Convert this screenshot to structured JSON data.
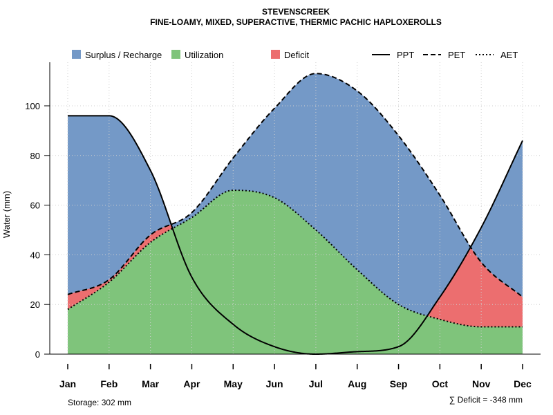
{
  "chart_data": {
    "type": "area",
    "title": "STEVENSCREEK",
    "subtitle": "FINE-LOAMY, MIXED, SUPERACTIVE, THERMIC PACHIC HAPLOXEROLLS",
    "xlabel": "",
    "ylabel": "Water (mm)",
    "categories": [
      "Jan",
      "Feb",
      "Mar",
      "Apr",
      "May",
      "Jun",
      "Jul",
      "Aug",
      "Sep",
      "Oct",
      "Nov",
      "Dec"
    ],
    "ylim": [
      0,
      117
    ],
    "yticks": [
      0,
      20,
      40,
      60,
      80,
      100
    ],
    "grid": true,
    "series": [
      {
        "name": "PPT",
        "style": "solid",
        "values": [
          96,
          96,
          74,
          31,
          12,
          3,
          0,
          1,
          3,
          23,
          51,
          86
        ]
      },
      {
        "name": "PET",
        "style": "dashed",
        "values": [
          24,
          30,
          48,
          57,
          79,
          99,
          113,
          106,
          88,
          64,
          37,
          23
        ]
      },
      {
        "name": "AET",
        "style": "dotted",
        "values": [
          18,
          29,
          45,
          55,
          66,
          63,
          50,
          34,
          20,
          14,
          11,
          11
        ]
      }
    ],
    "fill_legend": [
      {
        "name": "Surplus / Recharge",
        "color": "#7499C7"
      },
      {
        "name": "Utilization",
        "color": "#7FC47B"
      },
      {
        "name": "Deficit",
        "color": "#EC6E6F"
      }
    ],
    "line_legend": [
      {
        "name": "PPT",
        "style": "solid"
      },
      {
        "name": "PET",
        "style": "dashed"
      },
      {
        "name": "AET",
        "style": "dotted"
      }
    ],
    "storage_text": "Storage: 302 mm",
    "deficit_text": "∑ Deficit = -348 mm"
  }
}
